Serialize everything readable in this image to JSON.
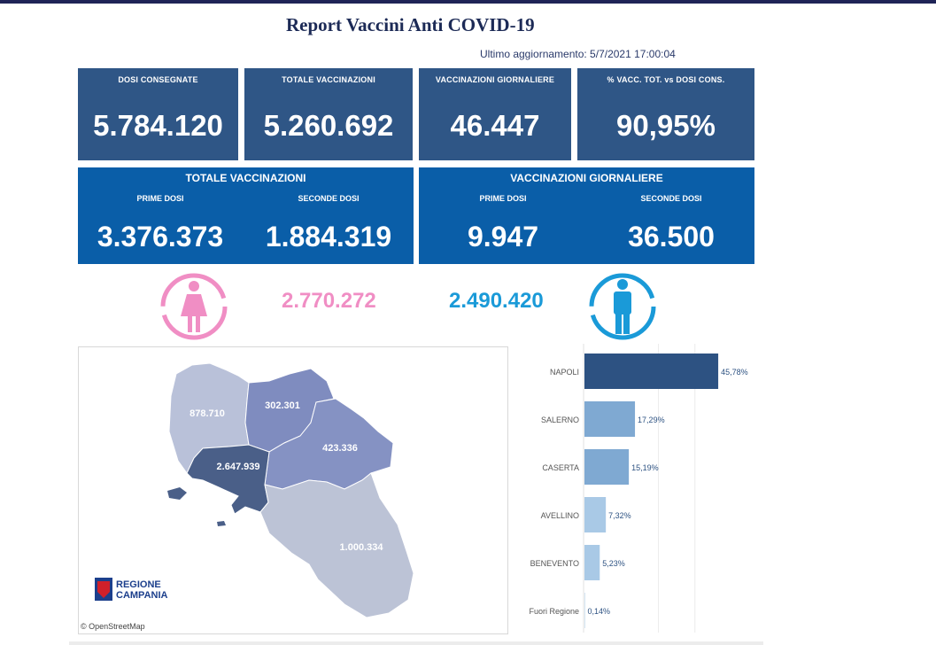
{
  "header": {
    "title": "Report Vaccini Anti COVID-19",
    "updated": "Ultimo aggiornamento: 5/7/2021 17:00:04"
  },
  "kpis": [
    {
      "label": "DOSI  CONSEGNATE",
      "value": "5.784.120"
    },
    {
      "label": "TOTALE VACCINAZIONI",
      "value": "5.260.692"
    },
    {
      "label": "VACCINAZIONI GIORNALIERE",
      "value": "46.447"
    },
    {
      "label": "% VACC. TOT. vs DOSI CONS.",
      "value": "90,95%"
    }
  ],
  "totale_panel": {
    "title": "TOTALE VACCINAZIONI",
    "prime_label": "PRIME DOSI",
    "prime_value": "3.376.373",
    "seconde_label": "SECONDE DOSI",
    "seconde_value": "1.884.319"
  },
  "giornaliere_panel": {
    "title": "VACCINAZIONI GIORNALIERE",
    "prime_label": "PRIME DOSI",
    "prime_value": "9.947",
    "seconde_label": "SECONDE DOSI",
    "seconde_value": "36.500"
  },
  "gender": {
    "female_value": "2.770.272",
    "male_value": "2.490.420",
    "female_color": "#f08ec4",
    "male_color": "#1a9ad8"
  },
  "map": {
    "regions": [
      {
        "name": "Caserta",
        "value": "878.710",
        "color": "#b9c1d9"
      },
      {
        "name": "Benevento",
        "value": "302.301",
        "color": "#7f8cbf"
      },
      {
        "name": "Avellino",
        "value": "423.336",
        "color": "#8592c3"
      },
      {
        "name": "Napoli",
        "value": "2.647.939",
        "color": "#4a5f88"
      },
      {
        "name": "Salerno",
        "value": "1.000.334",
        "color": "#bcc3d6"
      }
    ],
    "logo_line1": "REGIONE",
    "logo_line2": "CAMPANIA",
    "copyright": "© OpenStreetMap"
  },
  "chart_data": {
    "type": "bar",
    "orientation": "horizontal",
    "categories": [
      "NAPOLI",
      "SALERNO",
      "CASERTA",
      "AVELLINO",
      "BENEVENTO",
      "Fuori Regione"
    ],
    "values": [
      45.78,
      17.29,
      15.19,
      7.32,
      5.23,
      0.14
    ],
    "labels": [
      "45,78%",
      "17,29%",
      "15,19%",
      "7,32%",
      "5,23%",
      "0,14%"
    ],
    "colors": [
      "#2d5282",
      "#7fa9d2",
      "#7fa9d2",
      "#a9c9e6",
      "#a9c9e6",
      "#a9c9e6"
    ],
    "xlim": [
      0,
      50
    ],
    "title": "",
    "xlabel": "",
    "ylabel": ""
  }
}
